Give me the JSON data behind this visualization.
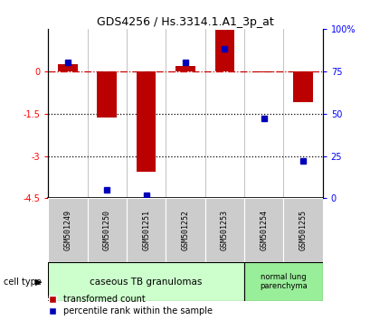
{
  "title": "GDS4256 / Hs.3314.1.A1_3p_at",
  "samples": [
    "GSM501249",
    "GSM501250",
    "GSM501251",
    "GSM501252",
    "GSM501253",
    "GSM501254",
    "GSM501255"
  ],
  "transformed_count": [
    0.25,
    -1.65,
    -3.55,
    0.2,
    1.45,
    -0.05,
    -1.1
  ],
  "percentile_rank": [
    80,
    5,
    2,
    80,
    88,
    47,
    22
  ],
  "ylim_left": [
    -4.5,
    1.5
  ],
  "ylim_right": [
    0,
    100
  ],
  "yticks_left": [
    0,
    -1.5,
    -3,
    -4.5
  ],
  "ytick_labels_left": [
    "0",
    "-1.5",
    "-3",
    "-4.5"
  ],
  "yticks_right": [
    100,
    75,
    50,
    25,
    0
  ],
  "ytick_labels_right": [
    "100%",
    "75",
    "50",
    "25",
    "0"
  ],
  "dotted_lines": [
    -1.5,
    -3
  ],
  "group1_n": 5,
  "group2_n": 2,
  "group1_label": "caseous TB granulomas",
  "group2_label": "normal lung\nparenchyma",
  "cell_type_label": "cell type",
  "legend1_label": "transformed count",
  "legend2_label": "percentile rank within the sample",
  "bar_color": "#bb0000",
  "dot_color": "#0000bb",
  "group1_color": "#ccffcc",
  "group2_color": "#99ee99",
  "sample_box_color": "#cccccc",
  "bar_width": 0.5
}
